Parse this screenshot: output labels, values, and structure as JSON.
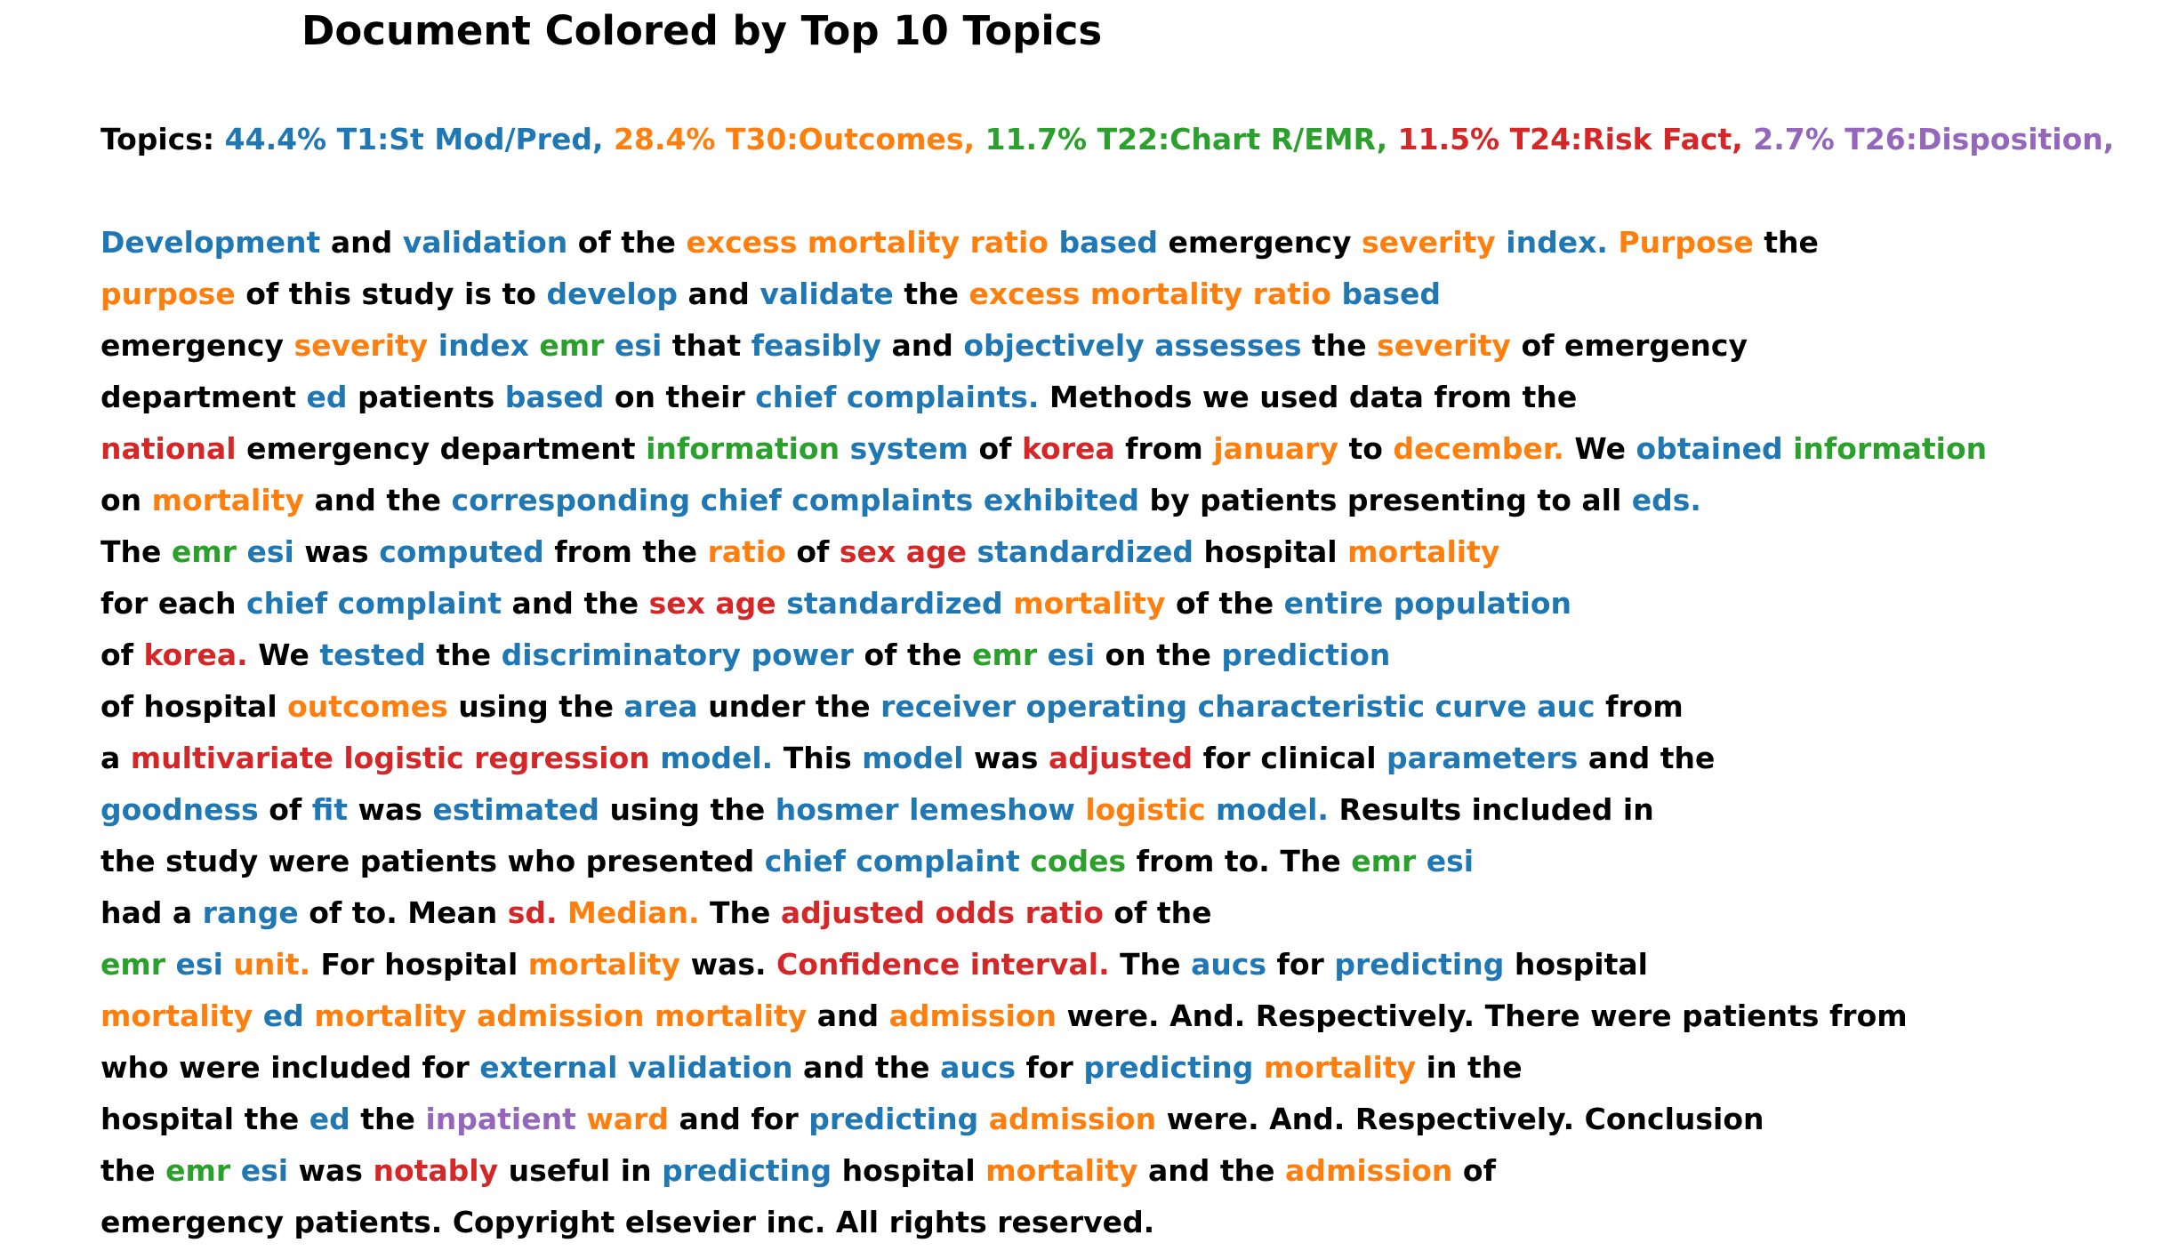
{
  "title": "Document Colored by Top 10 Topics",
  "colors": {
    "none": "#000000",
    "T1": "#1f77b4",
    "T30": "#ff7f0e",
    "T22": "#2ca02c",
    "T24": "#d62728",
    "T26": "#9467bd"
  },
  "topics_prefix": "Topics:",
  "topics": [
    {
      "text": "44.4% T1:St Mod/Pred,",
      "topic": "T1"
    },
    {
      "text": "28.4% T30:Outcomes,",
      "topic": "T30"
    },
    {
      "text": "11.7% T22:Chart R/EMR,",
      "topic": "T22"
    },
    {
      "text": "11.5% T24:Risk Fact,",
      "topic": "T24"
    },
    {
      "text": "2.7% T26:Disposition,",
      "topic": "T26"
    }
  ],
  "lines": [
    [
      [
        "Development",
        "T1"
      ],
      [
        "and",
        ""
      ],
      [
        "validation",
        "T1"
      ],
      [
        "of",
        ""
      ],
      [
        "the",
        ""
      ],
      [
        "excess",
        "T30"
      ],
      [
        "mortality",
        "T30"
      ],
      [
        "ratio",
        "T30"
      ],
      [
        "based",
        "T1"
      ],
      [
        "emergency",
        ""
      ],
      [
        "severity",
        "T30"
      ],
      [
        "index.",
        "T1"
      ],
      [
        "Purpose",
        "T30"
      ],
      [
        "the",
        ""
      ]
    ],
    [
      [
        "purpose",
        "T30"
      ],
      [
        "of",
        ""
      ],
      [
        "this",
        ""
      ],
      [
        "study",
        ""
      ],
      [
        "is",
        ""
      ],
      [
        "to",
        ""
      ],
      [
        "develop",
        "T1"
      ],
      [
        "and",
        ""
      ],
      [
        "validate",
        "T1"
      ],
      [
        "the",
        ""
      ],
      [
        "excess",
        "T30"
      ],
      [
        "mortality",
        "T30"
      ],
      [
        "ratio",
        "T30"
      ],
      [
        "based",
        "T1"
      ]
    ],
    [
      [
        "emergency",
        ""
      ],
      [
        "severity",
        "T30"
      ],
      [
        "index",
        "T1"
      ],
      [
        "emr",
        "T22"
      ],
      [
        "esi",
        "T1"
      ],
      [
        "that",
        ""
      ],
      [
        "feasibly",
        "T1"
      ],
      [
        "and",
        ""
      ],
      [
        "objectively",
        "T1"
      ],
      [
        "assesses",
        "T1"
      ],
      [
        "the",
        ""
      ],
      [
        "severity",
        "T30"
      ],
      [
        "of",
        ""
      ],
      [
        "emergency",
        ""
      ]
    ],
    [
      [
        "department",
        ""
      ],
      [
        "ed",
        "T1"
      ],
      [
        "patients",
        ""
      ],
      [
        "based",
        "T1"
      ],
      [
        "on",
        ""
      ],
      [
        "their",
        ""
      ],
      [
        "chief",
        "T1"
      ],
      [
        "complaints.",
        "T1"
      ],
      [
        "Methods",
        ""
      ],
      [
        "we",
        ""
      ],
      [
        "used",
        ""
      ],
      [
        "data",
        ""
      ],
      [
        "from",
        ""
      ],
      [
        "the",
        ""
      ]
    ],
    [
      [
        "national",
        "T24"
      ],
      [
        "emergency",
        ""
      ],
      [
        "department",
        ""
      ],
      [
        "information",
        "T22"
      ],
      [
        "system",
        "T1"
      ],
      [
        "of",
        ""
      ],
      [
        "korea",
        "T24"
      ],
      [
        "from",
        ""
      ],
      [
        "january",
        "T30"
      ],
      [
        "to",
        ""
      ],
      [
        "december.",
        "T30"
      ],
      [
        "We",
        ""
      ],
      [
        "obtained",
        "T1"
      ],
      [
        "information",
        "T22"
      ]
    ],
    [
      [
        "on",
        ""
      ],
      [
        "mortality",
        "T30"
      ],
      [
        "and",
        ""
      ],
      [
        "the",
        ""
      ],
      [
        "corresponding",
        "T1"
      ],
      [
        "chief",
        "T1"
      ],
      [
        "complaints",
        "T1"
      ],
      [
        "exhibited",
        "T1"
      ],
      [
        "by",
        ""
      ],
      [
        "patients",
        ""
      ],
      [
        "presenting",
        ""
      ],
      [
        "to",
        ""
      ],
      [
        "all",
        ""
      ],
      [
        "eds.",
        "T1"
      ]
    ],
    [
      [
        "The",
        ""
      ],
      [
        "emr",
        "T22"
      ],
      [
        "esi",
        "T1"
      ],
      [
        "was",
        ""
      ],
      [
        "computed",
        "T1"
      ],
      [
        "from",
        ""
      ],
      [
        "the",
        ""
      ],
      [
        "ratio",
        "T30"
      ],
      [
        "of",
        ""
      ],
      [
        "sex",
        "T24"
      ],
      [
        "age",
        "T24"
      ],
      [
        "standardized",
        "T1"
      ],
      [
        "hospital",
        ""
      ],
      [
        "mortality",
        "T30"
      ]
    ],
    [
      [
        "for",
        ""
      ],
      [
        "each",
        ""
      ],
      [
        "chief",
        "T1"
      ],
      [
        "complaint",
        "T1"
      ],
      [
        "and",
        ""
      ],
      [
        "the",
        ""
      ],
      [
        "sex",
        "T24"
      ],
      [
        "age",
        "T24"
      ],
      [
        "standardized",
        "T1"
      ],
      [
        "mortality",
        "T30"
      ],
      [
        "of",
        ""
      ],
      [
        "the",
        ""
      ],
      [
        "entire",
        "T1"
      ],
      [
        "population",
        "T1"
      ]
    ],
    [
      [
        "of",
        ""
      ],
      [
        "korea.",
        "T24"
      ],
      [
        "We",
        ""
      ],
      [
        "tested",
        "T1"
      ],
      [
        "the",
        ""
      ],
      [
        "discriminatory",
        "T1"
      ],
      [
        "power",
        "T1"
      ],
      [
        "of",
        ""
      ],
      [
        "the",
        ""
      ],
      [
        "emr",
        "T22"
      ],
      [
        "esi",
        "T1"
      ],
      [
        "on",
        ""
      ],
      [
        "the",
        ""
      ],
      [
        "prediction",
        "T1"
      ]
    ],
    [
      [
        "of",
        ""
      ],
      [
        "hospital",
        ""
      ],
      [
        "outcomes",
        "T30"
      ],
      [
        "using",
        ""
      ],
      [
        "the",
        ""
      ],
      [
        "area",
        "T1"
      ],
      [
        "under",
        ""
      ],
      [
        "the",
        ""
      ],
      [
        "receiver",
        "T1"
      ],
      [
        "operating",
        "T1"
      ],
      [
        "characteristic",
        "T1"
      ],
      [
        "curve",
        "T1"
      ],
      [
        "auc",
        "T1"
      ],
      [
        "from",
        ""
      ]
    ],
    [
      [
        "a",
        ""
      ],
      [
        "multivariate",
        "T24"
      ],
      [
        "logistic",
        "T24"
      ],
      [
        "regression",
        "T24"
      ],
      [
        "model.",
        "T1"
      ],
      [
        "This",
        ""
      ],
      [
        "model",
        "T1"
      ],
      [
        "was",
        ""
      ],
      [
        "adjusted",
        "T24"
      ],
      [
        "for",
        ""
      ],
      [
        "clinical",
        ""
      ],
      [
        "parameters",
        "T1"
      ],
      [
        "and",
        ""
      ],
      [
        "the",
        ""
      ]
    ],
    [
      [
        "goodness",
        "T1"
      ],
      [
        "of",
        ""
      ],
      [
        "fit",
        "T1"
      ],
      [
        "was",
        ""
      ],
      [
        "estimated",
        "T1"
      ],
      [
        "using",
        ""
      ],
      [
        "the",
        ""
      ],
      [
        "hosmer",
        "T1"
      ],
      [
        "lemeshow",
        "T1"
      ],
      [
        "logistic",
        "T30"
      ],
      [
        "model.",
        "T1"
      ],
      [
        "Results",
        ""
      ],
      [
        "included",
        ""
      ],
      [
        "in",
        ""
      ]
    ],
    [
      [
        "the",
        ""
      ],
      [
        "study",
        ""
      ],
      [
        "were",
        ""
      ],
      [
        "patients",
        ""
      ],
      [
        "who",
        ""
      ],
      [
        "presented",
        ""
      ],
      [
        "chief",
        "T1"
      ],
      [
        "complaint",
        "T1"
      ],
      [
        "codes",
        "T22"
      ],
      [
        "from",
        ""
      ],
      [
        "to.",
        ""
      ],
      [
        "The",
        ""
      ],
      [
        "emr",
        "T22"
      ],
      [
        "esi",
        "T1"
      ]
    ],
    [
      [
        "had",
        ""
      ],
      [
        "a",
        ""
      ],
      [
        "range",
        "T1"
      ],
      [
        "of",
        ""
      ],
      [
        "to.",
        ""
      ],
      [
        "Mean",
        ""
      ],
      [
        "sd.",
        "T24"
      ],
      [
        "Median.",
        "T30"
      ],
      [
        "The",
        ""
      ],
      [
        "adjusted",
        "T24"
      ],
      [
        "odds",
        "T24"
      ],
      [
        "ratio",
        "T24"
      ],
      [
        "of",
        ""
      ],
      [
        "the",
        ""
      ]
    ],
    [
      [
        "emr",
        "T22"
      ],
      [
        "esi",
        "T1"
      ],
      [
        "unit.",
        "T30"
      ],
      [
        "For",
        ""
      ],
      [
        "hospital",
        ""
      ],
      [
        "mortality",
        "T30"
      ],
      [
        "was.",
        ""
      ],
      [
        "Confidence",
        "T24"
      ],
      [
        "interval.",
        "T24"
      ],
      [
        "The",
        ""
      ],
      [
        "aucs",
        "T1"
      ],
      [
        "for",
        ""
      ],
      [
        "predicting",
        "T1"
      ],
      [
        "hospital",
        ""
      ]
    ],
    [
      [
        "mortality",
        "T30"
      ],
      [
        "ed",
        "T1"
      ],
      [
        "mortality",
        "T30"
      ],
      [
        "admission",
        "T30"
      ],
      [
        "mortality",
        "T30"
      ],
      [
        "and",
        ""
      ],
      [
        "admission",
        "T30"
      ],
      [
        "were.",
        ""
      ],
      [
        "And.",
        ""
      ],
      [
        "Respectively.",
        ""
      ],
      [
        "There",
        ""
      ],
      [
        "were",
        ""
      ],
      [
        "patients",
        ""
      ],
      [
        "from",
        ""
      ]
    ],
    [
      [
        "who",
        ""
      ],
      [
        "were",
        ""
      ],
      [
        "included",
        ""
      ],
      [
        "for",
        ""
      ],
      [
        "external",
        "T1"
      ],
      [
        "validation",
        "T1"
      ],
      [
        "and",
        ""
      ],
      [
        "the",
        ""
      ],
      [
        "aucs",
        "T1"
      ],
      [
        "for",
        ""
      ],
      [
        "predicting",
        "T1"
      ],
      [
        "mortality",
        "T30"
      ],
      [
        "in",
        ""
      ],
      [
        "the",
        ""
      ]
    ],
    [
      [
        "hospital",
        ""
      ],
      [
        "the",
        ""
      ],
      [
        "ed",
        "T1"
      ],
      [
        "the",
        ""
      ],
      [
        "inpatient",
        "T26"
      ],
      [
        "ward",
        "T30"
      ],
      [
        "and",
        ""
      ],
      [
        "for",
        ""
      ],
      [
        "predicting",
        "T1"
      ],
      [
        "admission",
        "T30"
      ],
      [
        "were.",
        ""
      ],
      [
        "And.",
        ""
      ],
      [
        "Respectively.",
        ""
      ],
      [
        "Conclusion",
        ""
      ]
    ],
    [
      [
        "the",
        ""
      ],
      [
        "emr",
        "T22"
      ],
      [
        "esi",
        "T1"
      ],
      [
        "was",
        ""
      ],
      [
        "notably",
        "T24"
      ],
      [
        "useful",
        ""
      ],
      [
        "in",
        ""
      ],
      [
        "predicting",
        "T1"
      ],
      [
        "hospital",
        ""
      ],
      [
        "mortality",
        "T30"
      ],
      [
        "and",
        ""
      ],
      [
        "the",
        ""
      ],
      [
        "admission",
        "T30"
      ],
      [
        "of",
        ""
      ]
    ],
    [
      [
        "emergency",
        ""
      ],
      [
        "patients.",
        ""
      ],
      [
        "Copyright",
        ""
      ],
      [
        "elsevier",
        ""
      ],
      [
        "inc.",
        ""
      ],
      [
        "All",
        ""
      ],
      [
        "rights",
        ""
      ],
      [
        "reserved.",
        ""
      ]
    ]
  ]
}
